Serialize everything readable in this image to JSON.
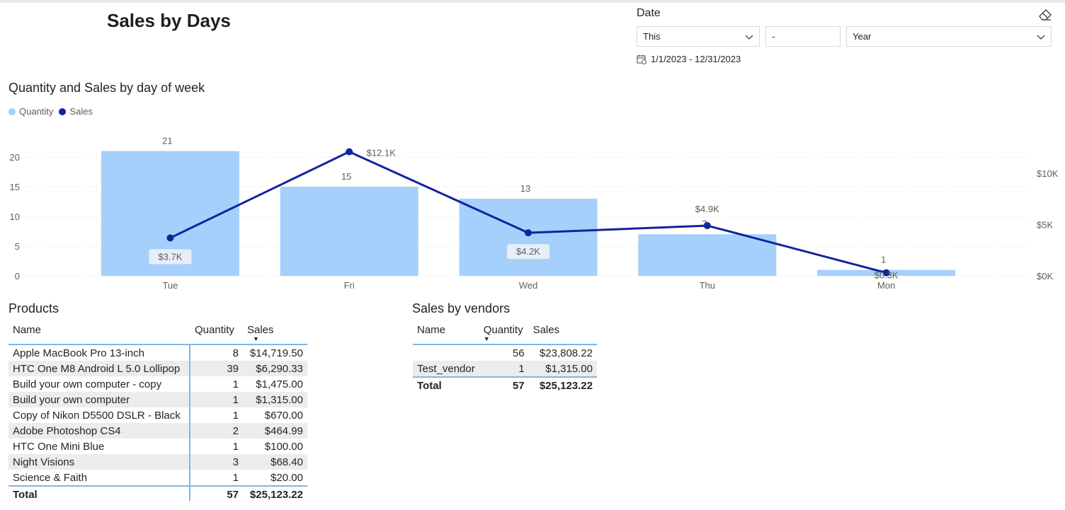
{
  "page": {
    "title": "Sales by Days"
  },
  "date_slicer": {
    "title": "Date",
    "relative": "This",
    "amount": "-",
    "period": "Year",
    "range": "1/1/2023 - 12/31/2023"
  },
  "colors": {
    "quantity": "#a5d0fc",
    "sales": "#12239e",
    "accent": "#7fb6e6"
  },
  "icons": {
    "eraser": "eraser-icon",
    "calendar": "calendar-icon",
    "chevron": "chevron-down-icon"
  },
  "chart_data": {
    "type": "bar",
    "title": "Quantity and Sales by day of week",
    "legend": [
      "Quantity",
      "Sales"
    ],
    "legend_position": "top-left",
    "categories": [
      "Tue",
      "Fri",
      "Wed",
      "Thu",
      "Mon"
    ],
    "series": [
      {
        "name": "Quantity",
        "type": "bar",
        "axis": "left",
        "values": [
          21,
          15,
          13,
          7,
          1
        ],
        "labels": [
          "21",
          "15",
          "13",
          "7",
          "1"
        ]
      },
      {
        "name": "Sales",
        "type": "line",
        "axis": "right",
        "values": [
          3700,
          12100,
          4200,
          4900,
          300
        ],
        "labels": [
          "$3.7K",
          "$12.1K",
          "$4.2K",
          "$4.9K",
          "$0.3K"
        ]
      }
    ],
    "y_left": {
      "ticks": [
        "0",
        "5",
        "10",
        "15",
        "20"
      ],
      "tick_values": [
        0,
        5,
        10,
        15,
        20
      ],
      "max": 21
    },
    "y_right": {
      "ticks": [
        "$0K",
        "$5K",
        "$10K"
      ],
      "tick_values": [
        0,
        5000,
        10000
      ],
      "max": 12100
    },
    "grid": true
  },
  "products": {
    "title": "Products",
    "columns": [
      "Name",
      "Quantity",
      "Sales"
    ],
    "rows": [
      [
        "Apple MacBook Pro 13-inch",
        "8",
        "$14,719.50"
      ],
      [
        "HTC One M8 Android L 5.0 Lollipop",
        "39",
        "$6,290.33"
      ],
      [
        "Build your own computer - copy",
        "1",
        "$1,475.00"
      ],
      [
        "Build your own computer",
        "1",
        "$1,315.00"
      ],
      [
        "Copy of Nikon D5500 DSLR - Black",
        "1",
        "$670.00"
      ],
      [
        "Adobe Photoshop CS4",
        "2",
        "$464.99"
      ],
      [
        "HTC One Mini Blue",
        "1",
        "$100.00"
      ],
      [
        "Night Visions",
        "3",
        "$68.40"
      ],
      [
        "Science & Faith",
        "1",
        "$20.00"
      ]
    ],
    "total": [
      "Total",
      "57",
      "$25,123.22"
    ]
  },
  "vendors": {
    "title": "Sales by vendors",
    "columns": [
      "Name",
      "Quantity",
      "Sales"
    ],
    "rows": [
      [
        "",
        "56",
        "$23,808.22"
      ],
      [
        "Test_vendor",
        "1",
        "$1,315.00"
      ]
    ],
    "total": [
      "Total",
      "57",
      "$25,123.22"
    ]
  }
}
